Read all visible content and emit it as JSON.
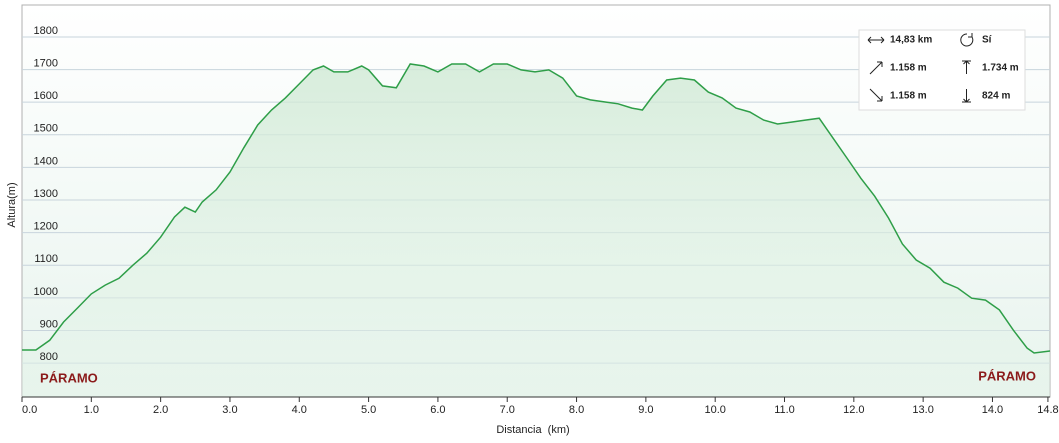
{
  "chart_data": {
    "type": "area-line",
    "x_label": "Distancia  (km)",
    "y_label": "Altura(m)",
    "xlim": [
      0,
      14.83
    ],
    "ylim": [
      696,
      1898
    ],
    "xticks": [
      {
        "value": 0,
        "label": "0.0"
      },
      {
        "value": 1,
        "label": "1.0"
      },
      {
        "value": 2,
        "label": "2.0"
      },
      {
        "value": 3,
        "label": "3.0"
      },
      {
        "value": 4,
        "label": "4.0"
      },
      {
        "value": 5,
        "label": "5.0"
      },
      {
        "value": 6,
        "label": "6.0"
      },
      {
        "value": 7,
        "label": "7.0"
      },
      {
        "value": 8,
        "label": "8.0"
      },
      {
        "value": 9,
        "label": "9.0"
      },
      {
        "value": 10,
        "label": "10.0"
      },
      {
        "value": 11,
        "label": "11.0"
      },
      {
        "value": 12,
        "label": "12.0"
      },
      {
        "value": 13,
        "label": "13.0"
      },
      {
        "value": 14,
        "label": "14.0"
      },
      14.8
    ],
    "yticks": [
      800,
      900,
      1000,
      1100,
      1200,
      1300,
      1400,
      1500,
      1600,
      1700,
      1800
    ],
    "grid": true,
    "series": [
      {
        "color": "#2e9e48",
        "x": [
          0,
          0.2,
          0.4,
          0.6,
          0.8,
          1.0,
          1.2,
          1.4,
          1.6,
          1.8,
          2.0,
          2.2,
          2.35,
          2.5,
          2.6,
          2.8,
          3.0,
          3.2,
          3.4,
          3.6,
          3.8,
          4.0,
          4.2,
          4.35,
          4.5,
          4.7,
          4.9,
          5.0,
          5.2,
          5.4,
          5.6,
          5.8,
          6.0,
          6.2,
          6.4,
          6.6,
          6.8,
          7.0,
          7.2,
          7.4,
          7.6,
          7.8,
          8.0,
          8.2,
          8.4,
          8.6,
          8.8,
          8.95,
          9.1,
          9.3,
          9.5,
          9.7,
          9.9,
          10.1,
          10.3,
          10.5,
          10.7,
          10.9,
          11.1,
          11.3,
          11.5,
          11.7,
          11.9,
          12.1,
          12.3,
          12.5,
          12.7,
          12.9,
          13.1,
          13.3,
          13.5,
          13.7,
          13.9,
          14.1,
          14.3,
          14.5,
          14.6,
          14.83
        ],
        "values": [
          840,
          840,
          870,
          926,
          969,
          1012,
          1039,
          1060,
          1100,
          1137,
          1186,
          1248,
          1278,
          1263,
          1294,
          1331,
          1386,
          1460,
          1530,
          1576,
          1613,
          1656,
          1699,
          1711,
          1693,
          1693,
          1711,
          1699,
          1650,
          1644,
          1717,
          1711,
          1693,
          1717,
          1717,
          1693,
          1717,
          1717,
          1699,
          1693,
          1699,
          1674,
          1619,
          1607,
          1601,
          1595,
          1582,
          1576,
          1619,
          1668,
          1674,
          1668,
          1631,
          1613,
          1582,
          1570,
          1545,
          1533,
          1539,
          1545,
          1551,
          1490,
          1429,
          1367,
          1312,
          1245,
          1165,
          1116,
          1091,
          1048,
          1030,
          999,
          993,
          963,
          901,
          846,
          831,
          837
        ]
      }
    ],
    "annotations": [
      "PÁRAMO",
      "PÁRAMO"
    ],
    "stats": [
      "14,83 km",
      "Sí",
      "1.158 m",
      "1.734 m",
      "1.158 m",
      "824 m"
    ]
  }
}
